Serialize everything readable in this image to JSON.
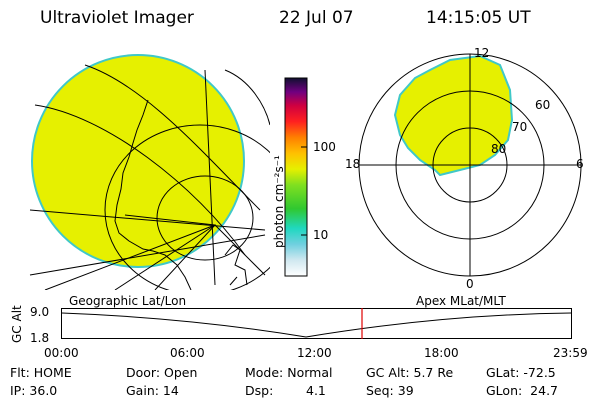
{
  "header": {
    "title": "Ultraviolet Imager",
    "date": "22 Jul 07",
    "time": "14:15:05 UT"
  },
  "colorbar": {
    "unit_label": "photon cm⁻²s⁻¹",
    "ticks": [
      "100",
      "10"
    ]
  },
  "polar": {
    "labels": {
      "top": "12",
      "left": "18",
      "right": "6",
      "bottom": "0"
    },
    "lat_labels": [
      "60",
      "70",
      "80"
    ]
  },
  "map_labels": {
    "geo": "Geographic Lat/Lon",
    "apex": "Apex MLat/MLT"
  },
  "timeline": {
    "axis_label": "GC Alt",
    "y_ticks": [
      "9.0",
      "1.8"
    ],
    "x_ticks": [
      "00:00",
      "06:00",
      "12:00",
      "18:00",
      "23:59"
    ],
    "marker_time": "14:15"
  },
  "info": {
    "flt": "Flt: HOME",
    "ip": "IP: 36.0",
    "door": "Door: Open",
    "gain": "Gain: 14",
    "mode": "Mode: Normal",
    "dsp_label": "Dsp:",
    "dsp_value": "4.1",
    "gc_alt": "GC Alt: 5.7 Re",
    "seq": "Seq: 39",
    "glat": "GLat: -72.5",
    "glon": "GLon:  24.7"
  },
  "colors": {
    "fill": "#e6f000",
    "fill_edge": "#40c8c8",
    "marker": "#e00000"
  }
}
